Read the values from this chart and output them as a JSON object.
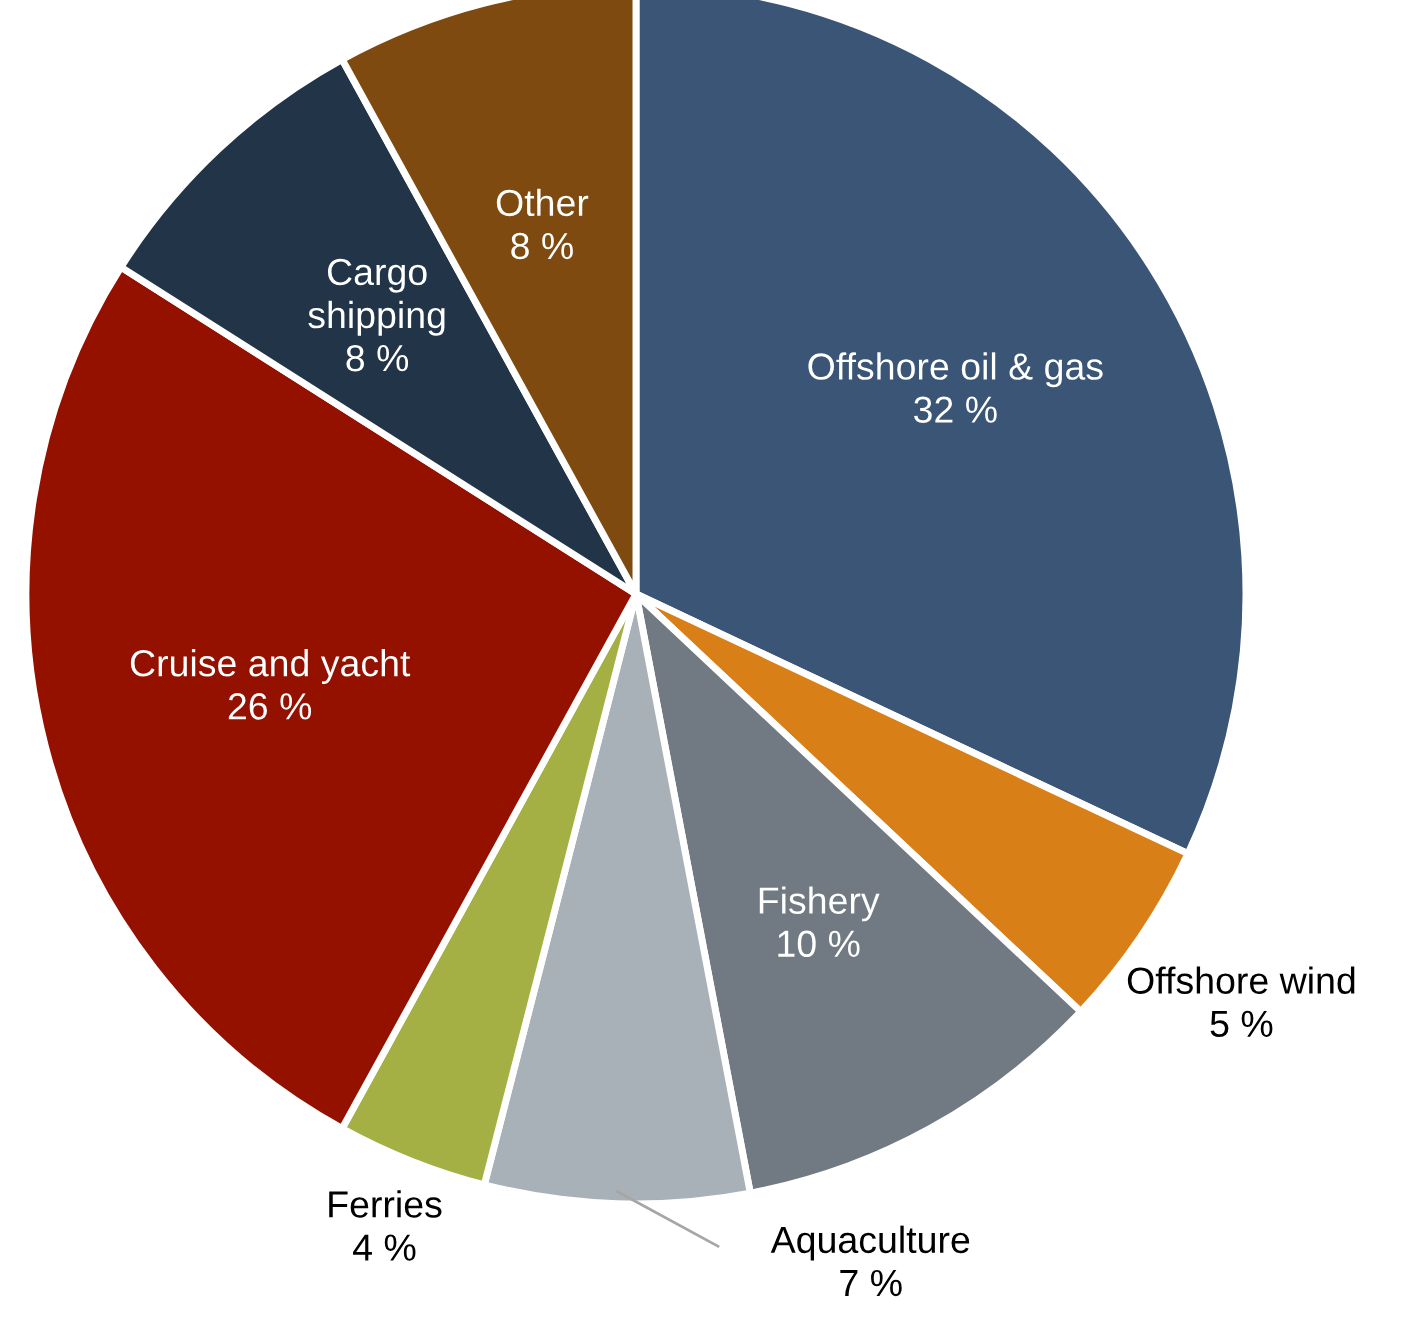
{
  "chart_data": {
    "type": "pie",
    "categories": [
      "Offshore oil & gas",
      "Offshore wind",
      "Fishery",
      "Aquaculture",
      "Ferries",
      "Cruise and yacht",
      "Cargo shipping",
      "Other"
    ],
    "values": [
      32,
      5,
      10,
      7,
      4,
      26,
      8,
      8
    ],
    "value_labels": [
      "32 %",
      "5 %",
      "10 %",
      "7 %",
      "4 %",
      "26 %",
      "8 %",
      "8 %"
    ],
    "colors": [
      "#3a5575",
      "#d97f17",
      "#717a82",
      "#a9b1b8",
      "#a4b044",
      "#941100",
      "#223448",
      "#7f4a10"
    ],
    "legend": false
  }
}
